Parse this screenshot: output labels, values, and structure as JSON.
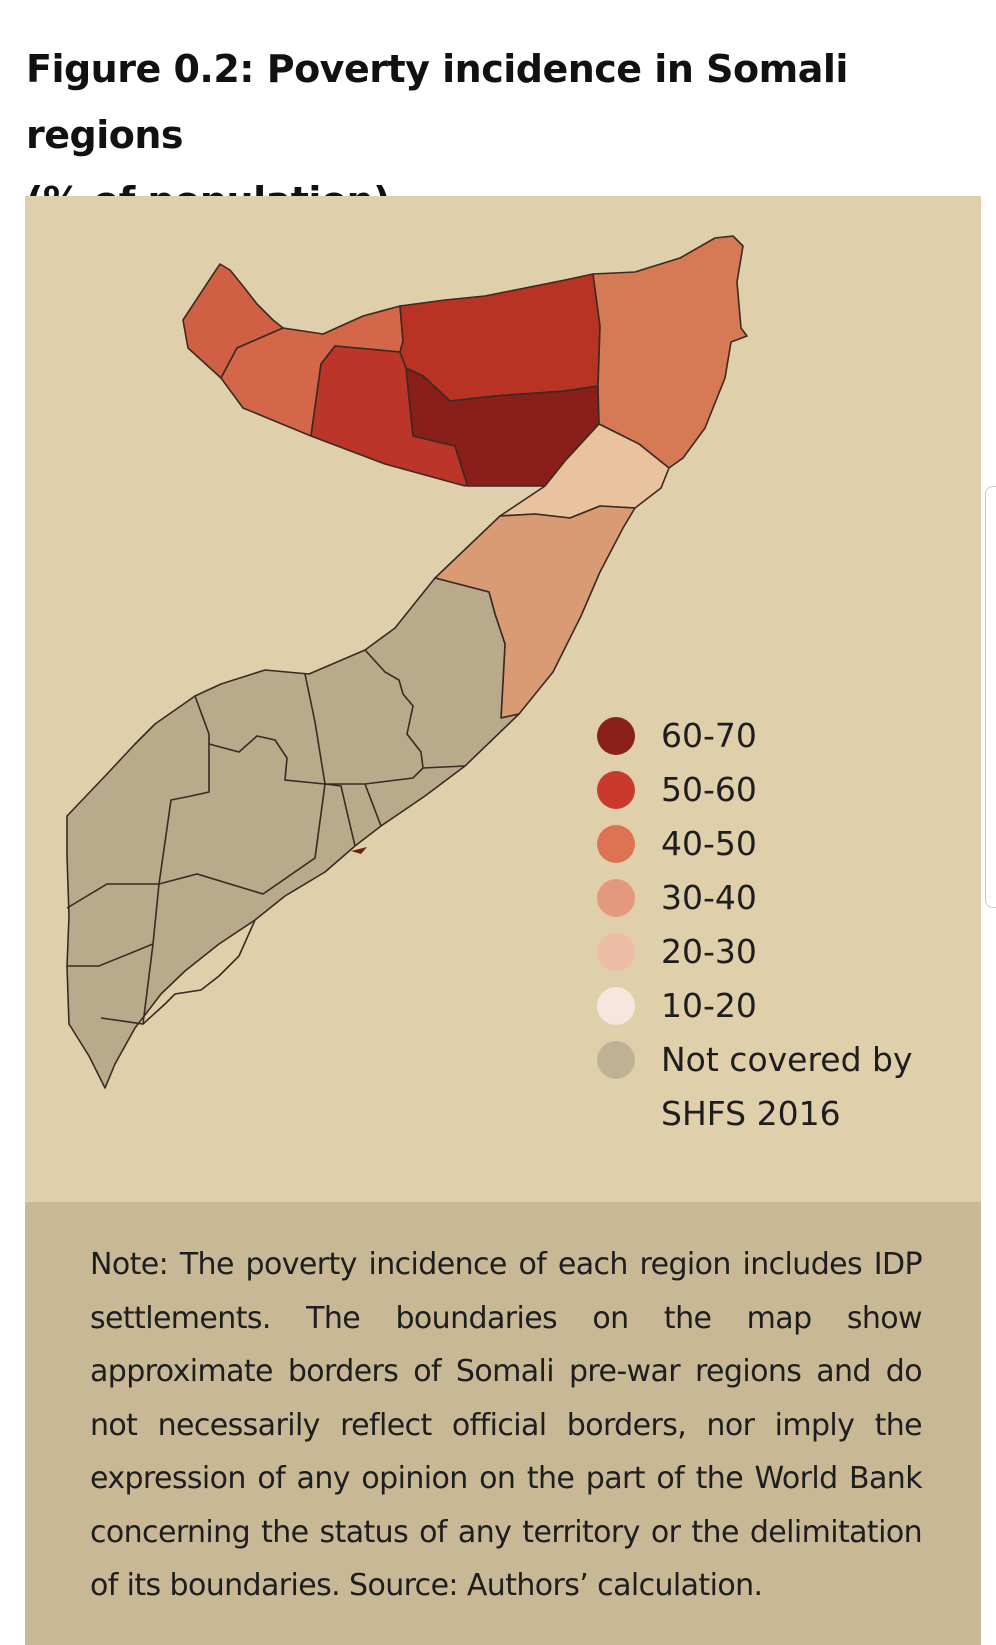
{
  "title": {
    "line1": "Figure 0.2: Poverty incidence in Somali regions",
    "line2": "(% of population)."
  },
  "legend": {
    "items": [
      {
        "label": "60-70",
        "color": "#8b1f1c"
      },
      {
        "label": "50-60",
        "color": "#c93a2c"
      },
      {
        "label": "40-50",
        "color": "#de7353"
      },
      {
        "label": "30-40",
        "color": "#e5997c"
      },
      {
        "label": "20-30",
        "color": "#ecbca7"
      },
      {
        "label": "10-20",
        "color": "#f6e6de"
      },
      {
        "label": "Not covered by SHFS 2016",
        "color": "#bfb193"
      }
    ]
  },
  "regions": [
    {
      "category": "40-50",
      "color": "#cf6044"
    },
    {
      "category": "40-50",
      "color": "#d4664a"
    },
    {
      "category": "40-50",
      "color": "#d26448"
    },
    {
      "category": "50-60",
      "color": "#bb3529"
    },
    {
      "category": "50-60",
      "color": "#b93325"
    },
    {
      "category": "60-70",
      "color": "#8a1e1a"
    },
    {
      "category": "40-50",
      "color": "#d67a56"
    },
    {
      "category": "20-30",
      "color": "#e8c39e"
    },
    {
      "category": "30-40",
      "color": "#d99b73"
    },
    {
      "category": "Not covered by SHFS 2016",
      "color": "#b9aa8c"
    }
  ],
  "note": {
    "text": "Note: The poverty incidence of each region includes IDP settlements. The boundaries on the map show approximate borders of Somali pre-war regions and do not necessarily reflect official borders, nor imply the expression of any opinion on the part of the World Bank concerning the status of any territory or the delimitation of its boundaries. Source: Authors’ calculation."
  },
  "colors": {
    "panel_background": "#e0cfab",
    "note_background": "#c8b896",
    "border_line": "#3a2a22"
  }
}
